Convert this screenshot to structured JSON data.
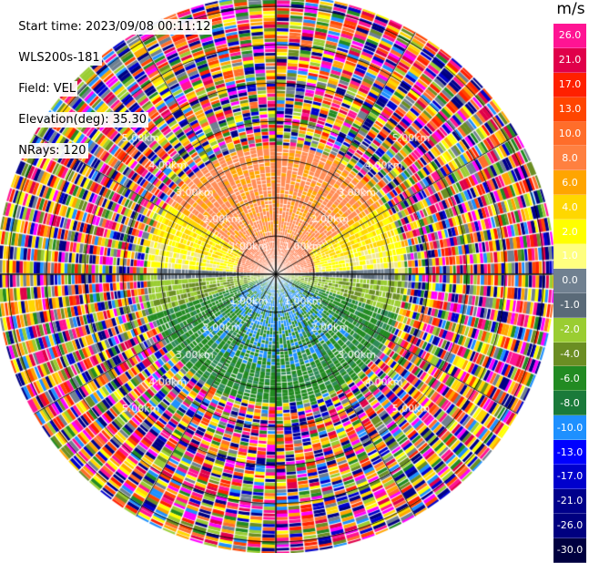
{
  "header": {
    "start_time": "Start time: 2023/09/08 00:11:12",
    "instrument": "WLS200s-181",
    "field": "Field: VEL",
    "elevation": "Elevation(deg): 35.30",
    "nrays": "NRays: 120"
  },
  "colorbar": {
    "unit": "m/s",
    "labels": [
      "26.0",
      "21.0",
      "17.0",
      "13.0",
      "10.0",
      "8.0",
      "6.0",
      "4.0",
      "2.0",
      "1.0",
      "0.0",
      "-1.0",
      "-2.0",
      "-4.0",
      "-6.0",
      "-8.0",
      "-10.0",
      "-13.0",
      "-17.0",
      "-21.0",
      "-26.0",
      "-30.0"
    ],
    "colors": [
      "#ff1493",
      "#e0004a",
      "#ff2000",
      "#ff4500",
      "#ff6d2a",
      "#ff8040",
      "#ffa500",
      "#ffd700",
      "#ffff00",
      "#ffff80",
      "#708090",
      "#5a6a78",
      "#9acd32",
      "#6b8e23",
      "#228b22",
      "#1a7a3a",
      "#1e90ff",
      "#0000ff",
      "#0000cd",
      "#00008b",
      "#000080",
      "#000040"
    ]
  },
  "ppi": {
    "rays": 120,
    "ring_labels": [
      "1.00km",
      "2.00km",
      "3.00km",
      "4.00km",
      "5.00km"
    ]
  }
}
